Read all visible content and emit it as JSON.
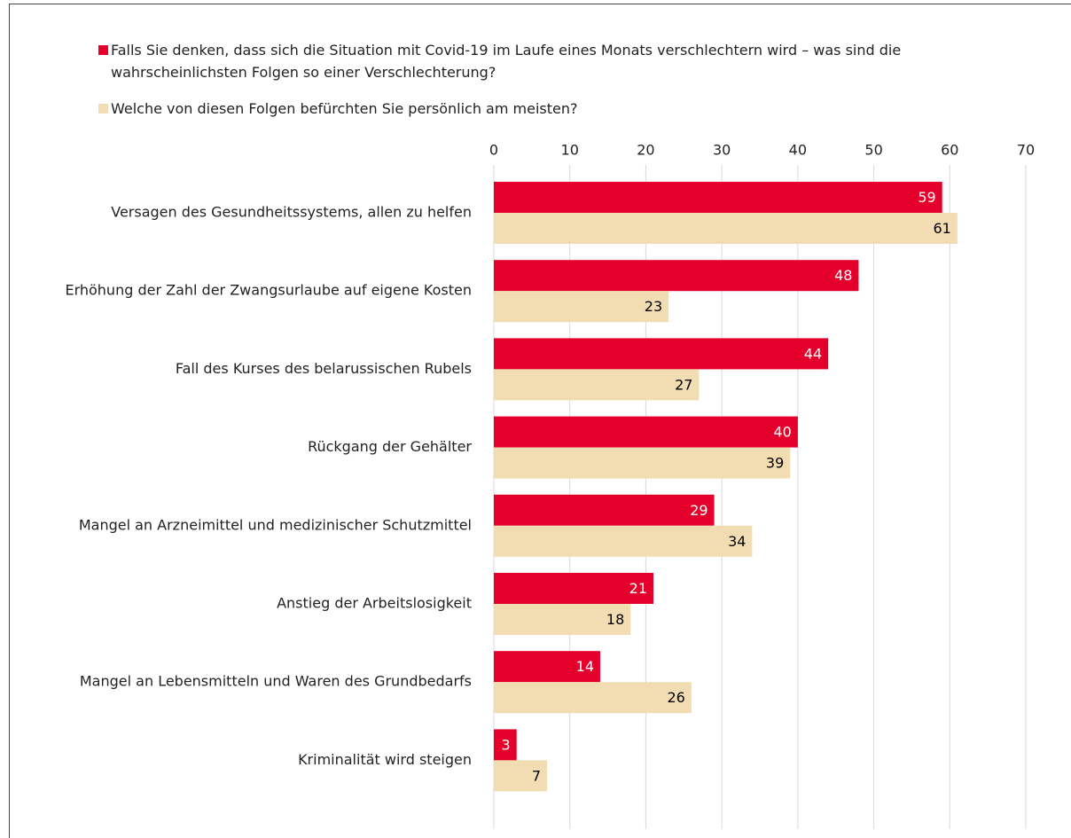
{
  "chart_data": {
    "type": "bar",
    "orientation": "horizontal",
    "categories": [
      "Versagen des Gesundheitssystems, allen zu helfen",
      "Erhöhung der Zahl der Zwangsurlaube auf eigene Kosten",
      "Fall des Kurses des belarussischen Rubels",
      "Rückgang der Gehälter",
      "Mangel an Arzneimittel und medizinischer Schutzmittel",
      "Anstieg der Arbeitslosigkeit",
      "Mangel an Lebensmitteln und Waren des Grundbedarfs",
      "Kriminalität wird steigen"
    ],
    "series": [
      {
        "name": "Falls Sie denken, dass sich die Situation mit Covid-19 im Laufe eines Monats verschlechtern wird – was sind die wahrscheinlichsten Folgen so einer Verschlechterung?",
        "color": "#e4002b",
        "label_color": "#ffffff",
        "values": [
          59,
          48,
          44,
          40,
          29,
          21,
          14,
          3
        ]
      },
      {
        "name": "Welche von diesen Folgen befürchten Sie persönlich am meisten?",
        "color": "#f2dcb1",
        "label_color": "#000000",
        "values": [
          61,
          23,
          27,
          39,
          34,
          18,
          26,
          7
        ]
      }
    ],
    "xlim": [
      0,
      70
    ],
    "xticks": [
      0,
      10,
      20,
      30,
      40,
      50,
      60,
      70
    ],
    "grid": true
  }
}
